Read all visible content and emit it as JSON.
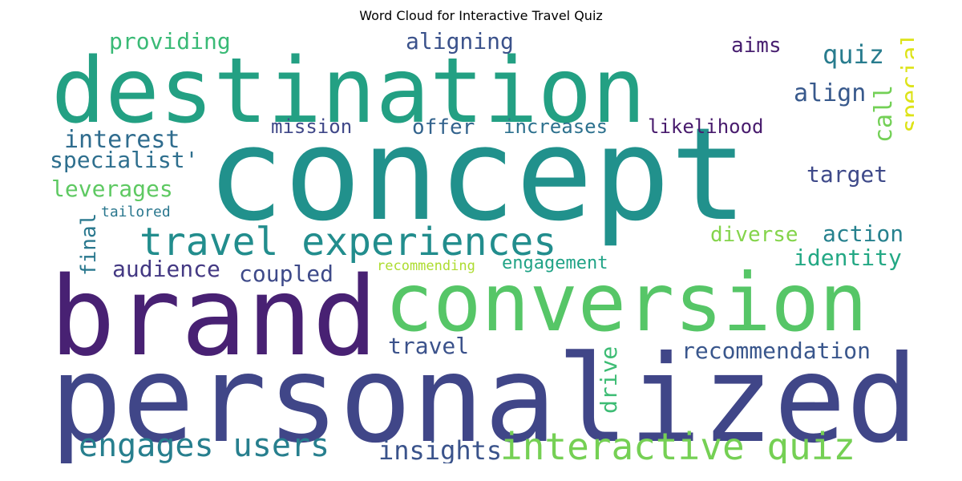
{
  "title": "Word Cloud for Interactive Travel Quiz",
  "words": {
    "concept": {
      "text": "concept",
      "color": "#21918c"
    },
    "destination": {
      "text": "destination",
      "color": "#23a083"
    },
    "personalized": {
      "text": "personalized",
      "color": "#404688"
    },
    "brand": {
      "text": "brand",
      "color": "#482173"
    },
    "conversion": {
      "text": "conversion",
      "color": "#56c667"
    },
    "travel_experiences": {
      "text": "travel experiences",
      "color": "#228d8d"
    },
    "interactive_quiz": {
      "text": "interactive quiz",
      "color": "#75d054"
    },
    "engages_users": {
      "text": "engages users",
      "color": "#277f8e"
    },
    "recommendation": {
      "text": "recommendation",
      "color": "#39568c"
    },
    "providing": {
      "text": "providing",
      "color": "#3aba76"
    },
    "aligning": {
      "text": "aligning",
      "color": "#3b528b"
    },
    "aims": {
      "text": "aims",
      "color": "#481f70"
    },
    "quiz": {
      "text": "quiz",
      "color": "#287c8e"
    },
    "special": {
      "text": "special",
      "color": "#dde318"
    },
    "align": {
      "text": "align",
      "color": "#38598c"
    },
    "call": {
      "text": "call",
      "color": "#73d056"
    },
    "mission": {
      "text": "mission",
      "color": "#3f4788"
    },
    "offer": {
      "text": "offer",
      "color": "#33638d"
    },
    "increases": {
      "text": "increases",
      "color": "#2d718e"
    },
    "likelihood": {
      "text": "likelihood",
      "color": "#481b6d"
    },
    "interest": {
      "text": "interest",
      "color": "#2f6c8e"
    },
    "specialist": {
      "text": "specialist'",
      "color": "#2e6f8e"
    },
    "target": {
      "text": "target",
      "color": "#3e4989"
    },
    "leverages": {
      "text": "leverages",
      "color": "#5ec962"
    },
    "tailored": {
      "text": "tailored",
      "color": "#2a778e"
    },
    "final": {
      "text": "final",
      "color": "#2a788e"
    },
    "diverse": {
      "text": "diverse",
      "color": "#84d44b"
    },
    "action": {
      "text": "action",
      "color": "#26818e"
    },
    "identity": {
      "text": "identity",
      "color": "#23a884"
    },
    "audience": {
      "text": "audience",
      "color": "#443983"
    },
    "coupled": {
      "text": "coupled",
      "color": "#3e4a89"
    },
    "recommending": {
      "text": "recommending",
      "color": "#addc30"
    },
    "engagement": {
      "text": "engagement",
      "color": "#20a386"
    },
    "travel": {
      "text": "travel",
      "color": "#3b528b"
    },
    "drive": {
      "text": "drive",
      "color": "#3dbc74"
    },
    "insights": {
      "text": "insights",
      "color": "#3a538b"
    }
  }
}
